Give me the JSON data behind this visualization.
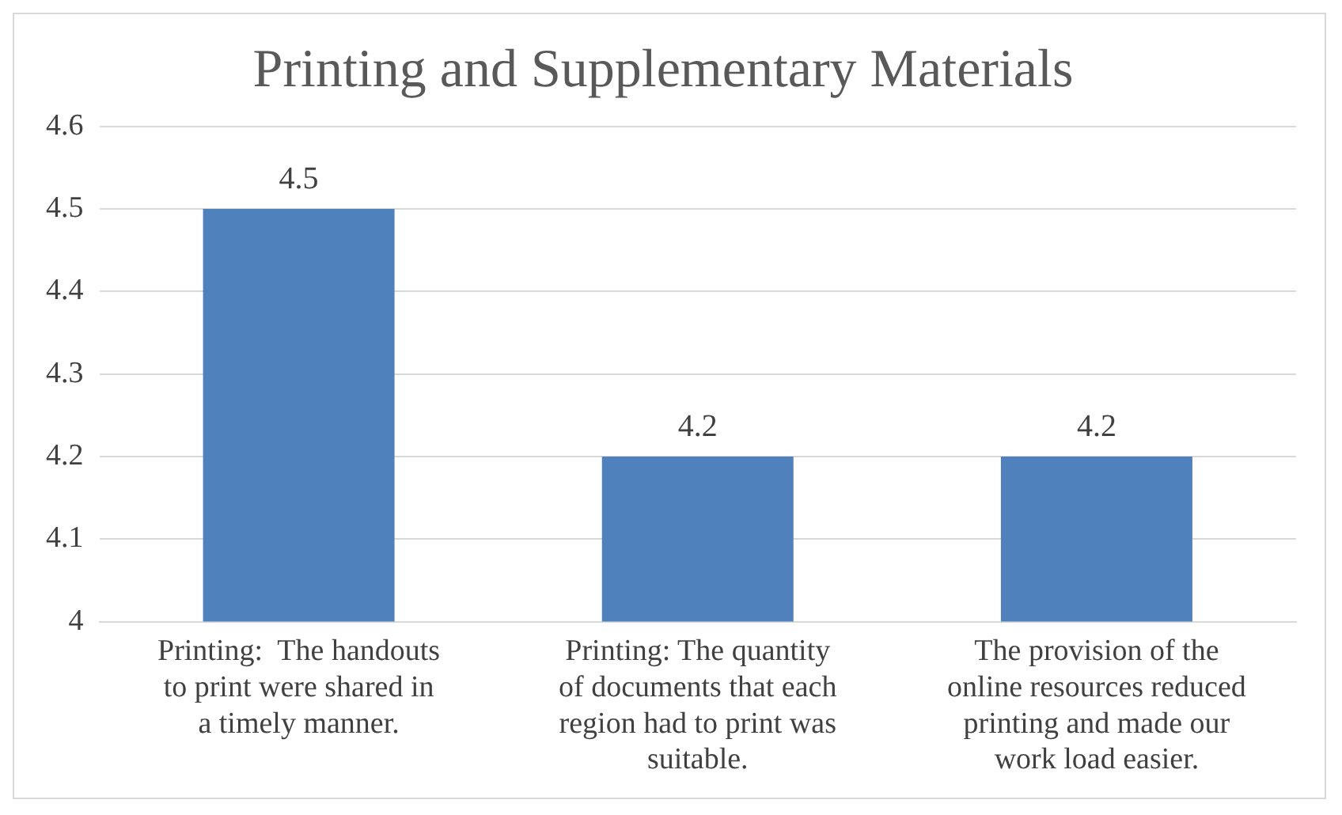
{
  "chart_data": {
    "type": "bar",
    "title": "Printing and Supplementary Materials",
    "categories": [
      "Printing:  The handouts to print were shared in a timely manner.",
      "Printing: The quantity of documents that each region had to print was suitable.",
      "The provision of the online resources reduced printing and made our work load easier."
    ],
    "values": [
      4.5,
      4.2,
      4.2
    ],
    "color": "#4f81bd",
    "ylim": [
      4,
      4.6
    ],
    "yticks": [
      4,
      4.1,
      4.2,
      4.3,
      4.4,
      4.5,
      4.6
    ],
    "grid": "y",
    "data_labels": true
  }
}
